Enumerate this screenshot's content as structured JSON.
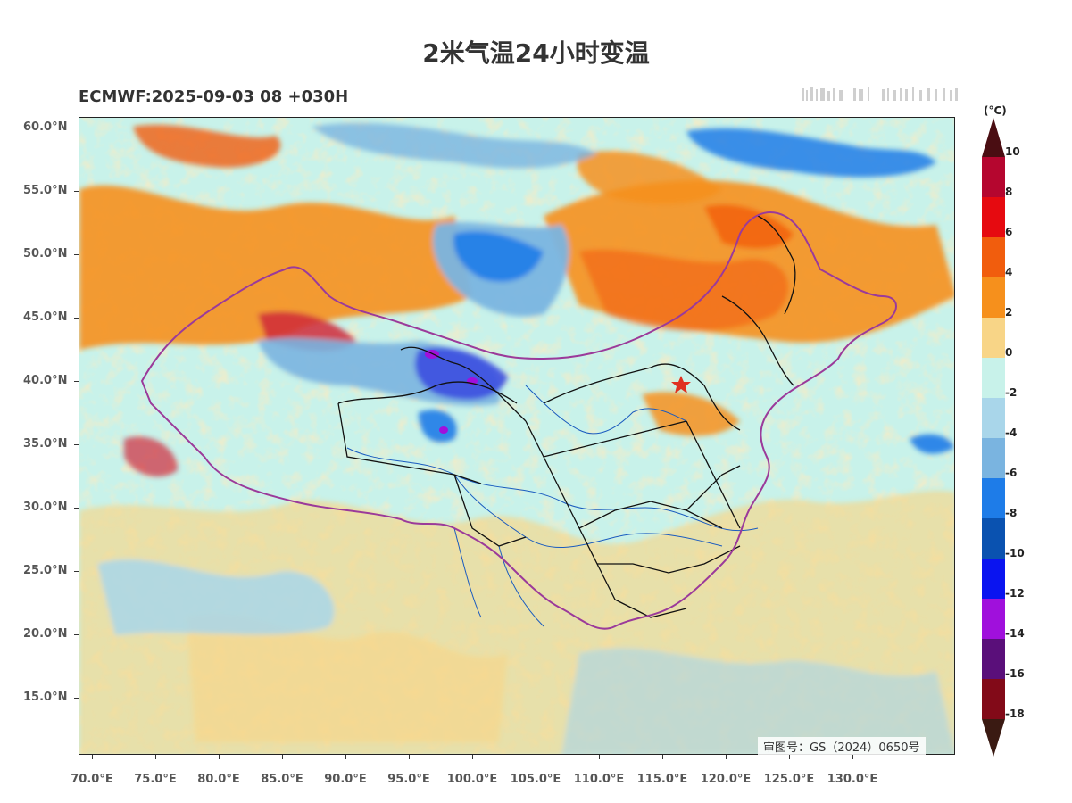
{
  "title": "2米气温24小时变温",
  "subtitle": "ECMWF:2025-09-03 08 +030H",
  "approval_number": "审图号：GS（2024）0650号",
  "latitude_labels": [
    "60.0°N",
    "55.0°N",
    "50.0°N",
    "45.0°N",
    "40.0°N",
    "35.0°N",
    "30.0°N",
    "25.0°N",
    "20.0°N",
    "15.0°N"
  ],
  "longitude_labels": [
    "70.0°E",
    "75.0°E",
    "80.0°E",
    "85.0°E",
    "90.0°E",
    "95.0°E",
    "100.0°E",
    "105.0°E",
    "110.0°E",
    "115.0°E",
    "120.0°E",
    "125.0°E",
    "130.0°E"
  ],
  "colorbar": {
    "unit": "(°C)",
    "labels": [
      "10",
      "8",
      "6",
      "4",
      "2",
      "0",
      "-2",
      "-4",
      "-6",
      "-8",
      "-10",
      "-12",
      "-14",
      "-16",
      "-18"
    ],
    "colors": {
      "gt10": "#4a0d12",
      "8_10": "#b5062f",
      "6_8": "#e60a10",
      "4_6": "#f15d0d",
      "2_4": "#f6901c",
      "0_2": "#f8d587",
      "m2_0": "#c8f2ea",
      "m4_m2": "#a9d6ea",
      "m6_m4": "#7ab4e0",
      "m8_m6": "#1e7ce8",
      "m10_m8": "#0a52b0",
      "m12_m10": "#0a14f0",
      "m14_m12": "#a010dc",
      "m16_m14": "#5a0f7a",
      "m18_m16": "#820a18",
      "lt_m18": "#3a1a12"
    }
  },
  "map_colors": {
    "ocean": "#c8f2ea",
    "warm_light": "#f8d587",
    "warm": "#f6901c",
    "warm_strong": "#f15d0d",
    "hot": "#d02a3a",
    "cool": "#a9d6ea",
    "cold": "#7ab4e0",
    "colder": "#1e7ce8",
    "very_cold": "#3a4ee0",
    "extreme_cold": "#a010dc",
    "province_border": "#111111",
    "national_border": "#9b3a9a",
    "river": "#1a5bbf",
    "capital_marker": "#e03020"
  },
  "icons": {
    "capital": "red-star-icon"
  }
}
